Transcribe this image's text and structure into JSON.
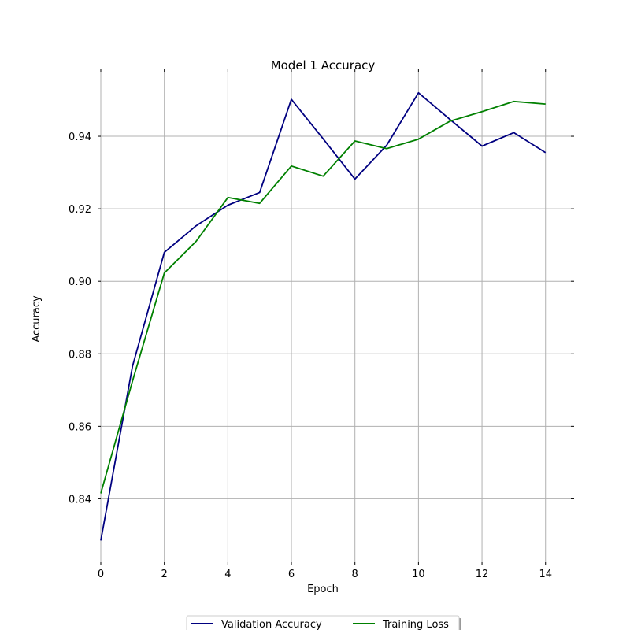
{
  "chart_data": {
    "type": "line",
    "title": "Model 1 Accuracy",
    "xlabel": "Epoch",
    "ylabel": "Accuracy",
    "x": [
      0,
      1,
      2,
      3,
      4,
      5,
      6,
      7,
      8,
      9,
      10,
      11,
      12,
      13,
      14
    ],
    "xlim": [
      0,
      14.8
    ],
    "ylim": [
      0.8225,
      0.9576
    ],
    "xticks": [
      0,
      2,
      4,
      6,
      8,
      10,
      12,
      14
    ],
    "yticks": [
      0.84,
      0.86,
      0.88,
      0.9,
      0.92,
      0.94
    ],
    "ytick_labels": [
      "0.84",
      "0.86",
      "0.88",
      "0.90",
      "0.92",
      "0.94"
    ],
    "grid": true,
    "legend_position": "bottom-center",
    "series": [
      {
        "name": "Validation Accuracy",
        "color": "#000080",
        "values": [
          0.8285,
          0.8766,
          0.908,
          0.9153,
          0.921,
          0.9245,
          0.9502,
          0.9393,
          0.9282,
          0.9375,
          0.952,
          0.9446,
          0.9373,
          0.941,
          0.9355
        ]
      },
      {
        "name": "Training Loss",
        "color": "#008000",
        "values": [
          0.8415,
          0.8725,
          0.9023,
          0.911,
          0.9231,
          0.9215,
          0.9318,
          0.929,
          0.9387,
          0.9366,
          0.9392,
          0.9442,
          0.9468,
          0.9496,
          0.9489
        ]
      }
    ]
  }
}
